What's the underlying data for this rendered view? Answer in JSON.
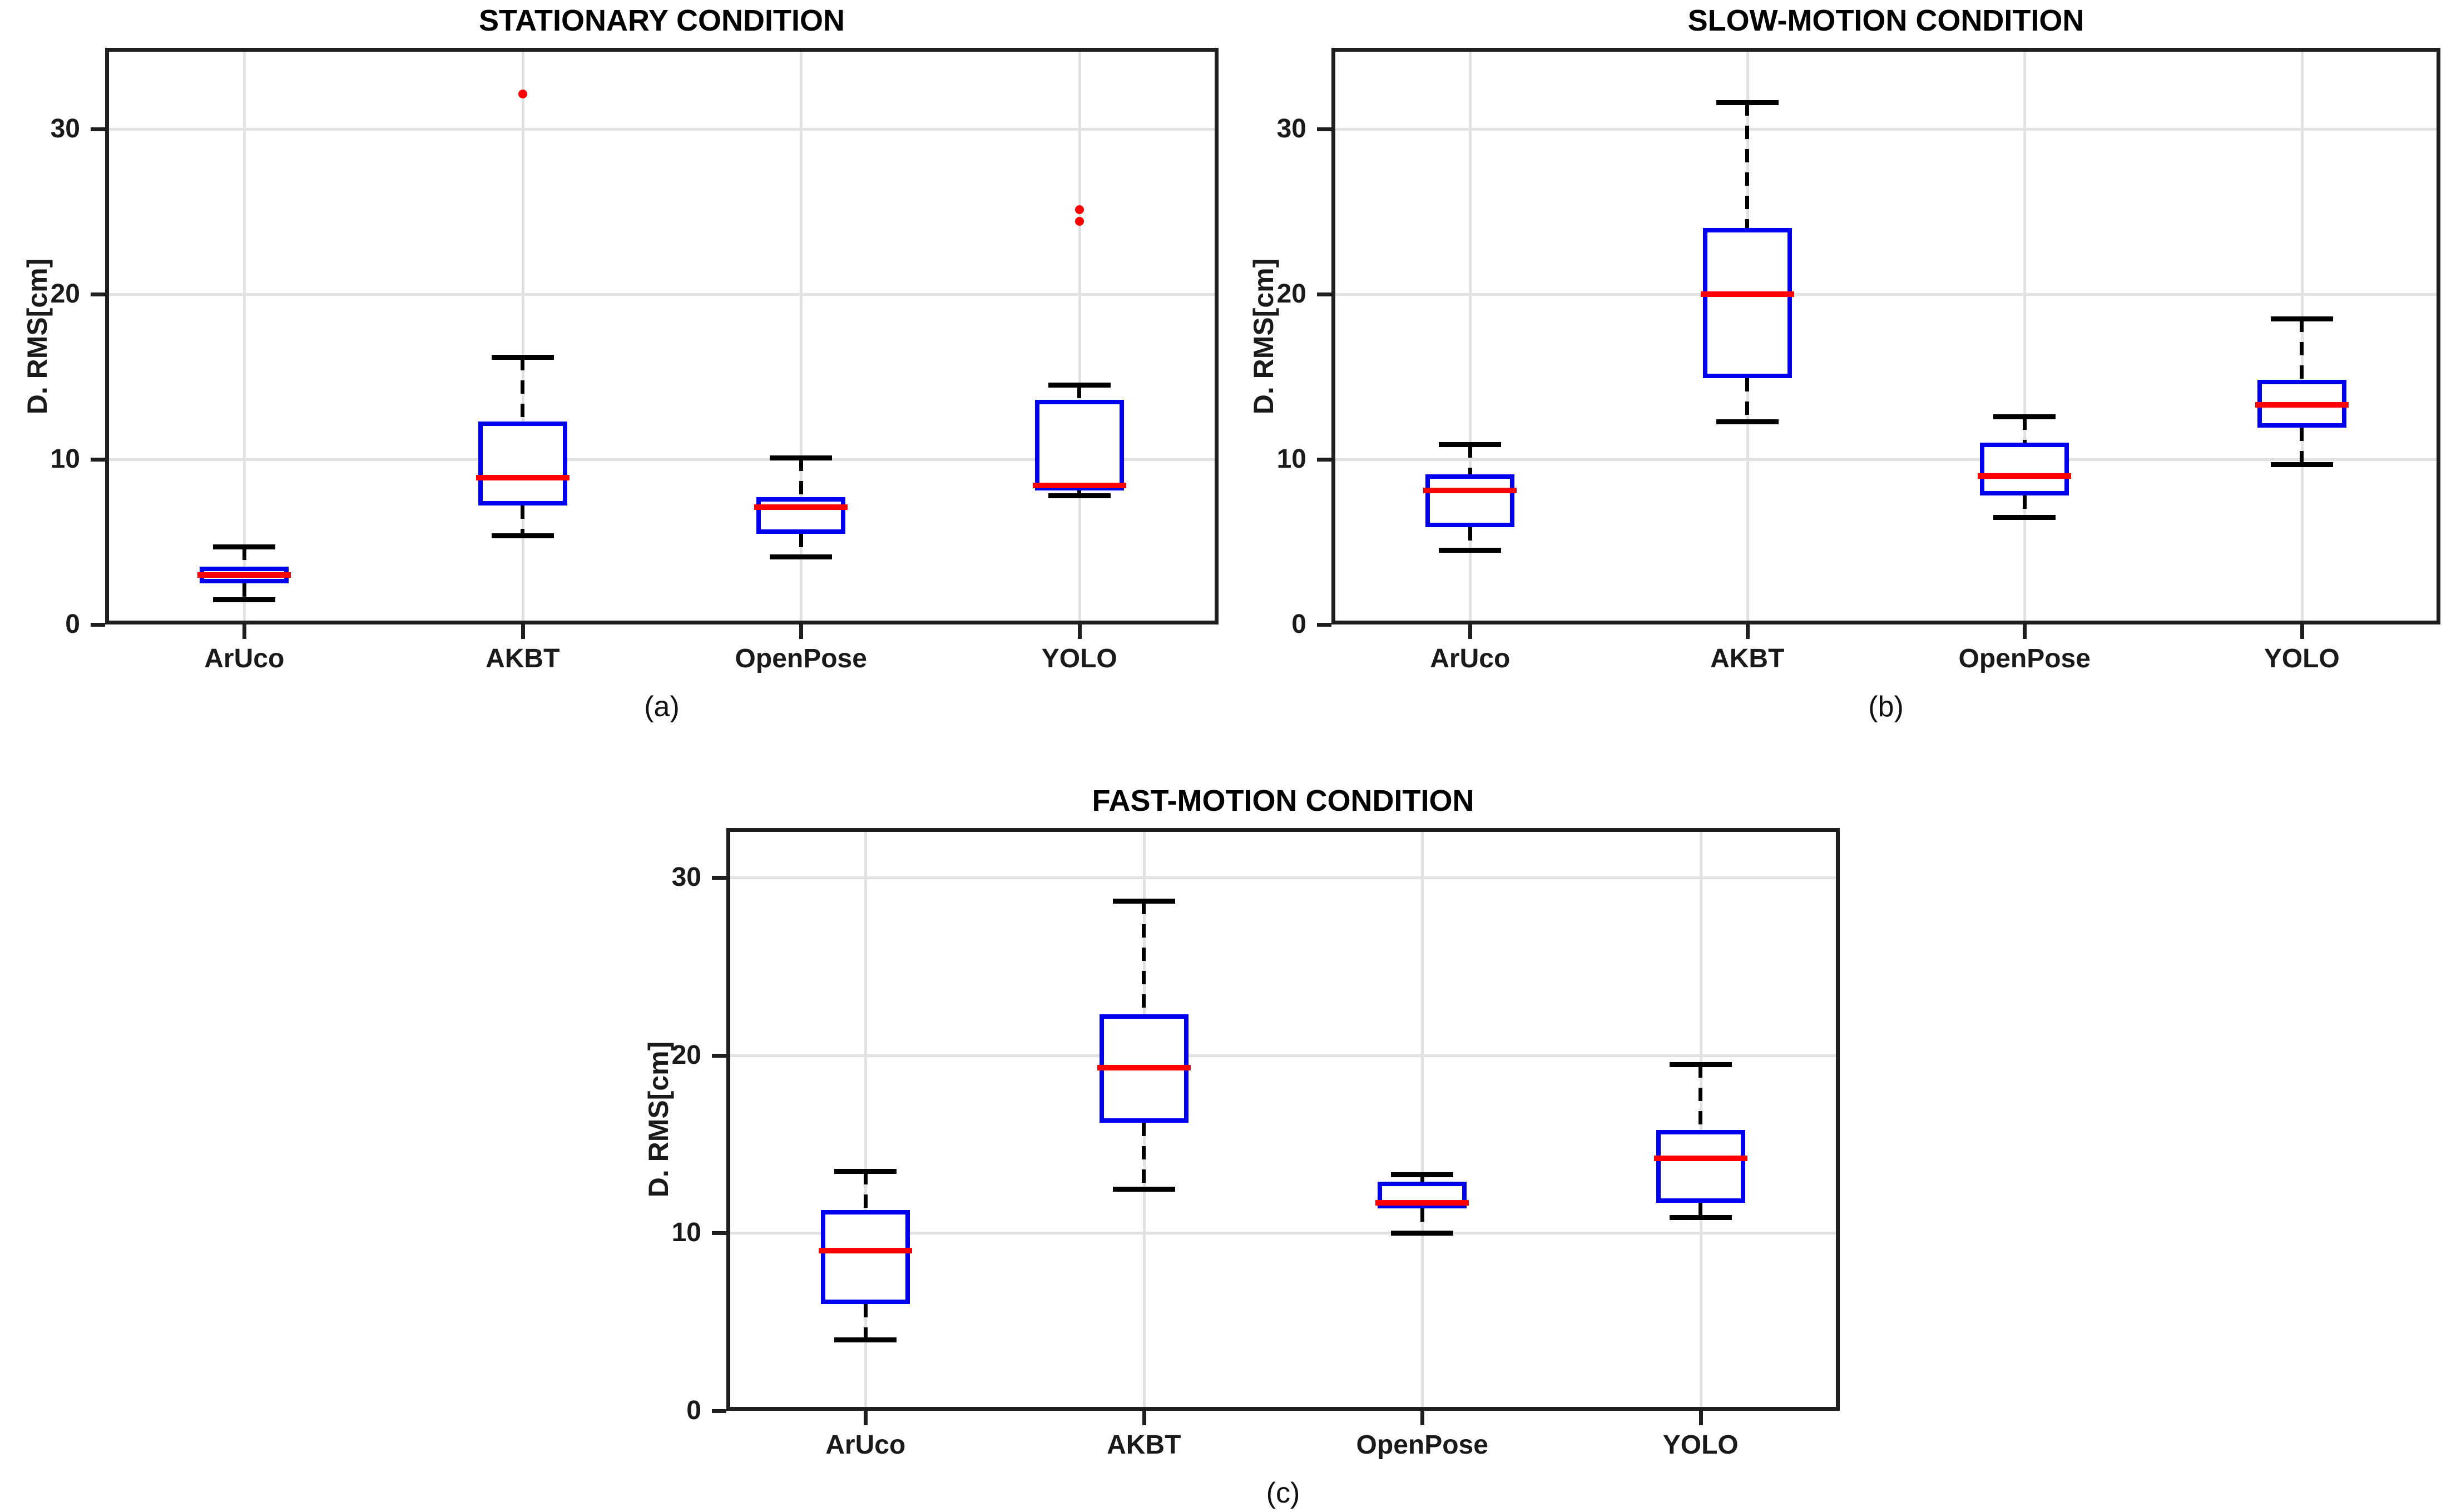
{
  "figure": {
    "background": "#ffffff",
    "box_color": "#0000ee",
    "median_color": "#ff0000",
    "whisker_color": "#000000",
    "outlier_color": "#ff0000",
    "grid_color": "#e2e2e2",
    "axis_color": "#1f1f1f"
  },
  "chart_data": [
    {
      "id": "a",
      "type": "box",
      "title": "STATIONARY CONDITION",
      "sublabel": "(a)",
      "ylabel": "D. RMS[cm]",
      "xlabel": "",
      "categories": [
        "ArUco",
        "AKBT",
        "OpenPose",
        "YOLO"
      ],
      "yticks": [
        0,
        10,
        20,
        30
      ],
      "ylim": [
        0,
        34.9
      ],
      "grid": true,
      "series": [
        {
          "category": "ArUco",
          "whisker_low": 1.5,
          "q1": 2.5,
          "median": 3.0,
          "q3": 3.5,
          "whisker_high": 4.7,
          "outliers": []
        },
        {
          "category": "AKBT",
          "whisker_low": 5.4,
          "q1": 7.2,
          "median": 8.9,
          "q3": 12.3,
          "whisker_high": 16.2,
          "outliers": [
            32.1
          ]
        },
        {
          "category": "OpenPose",
          "whisker_low": 4.1,
          "q1": 5.5,
          "median": 7.1,
          "q3": 7.7,
          "whisker_high": 10.1,
          "outliers": []
        },
        {
          "category": "YOLO",
          "whisker_low": 7.8,
          "q1": 8.1,
          "median": 8.4,
          "q3": 13.6,
          "whisker_high": 14.5,
          "outliers": [
            24.4,
            25.1
          ]
        }
      ]
    },
    {
      "id": "b",
      "type": "box",
      "title": "SLOW-MOTION CONDITION",
      "sublabel": "(b)",
      "ylabel": "D. RMS[cm]",
      "xlabel": "",
      "categories": [
        "ArUco",
        "AKBT",
        "OpenPose",
        "YOLO"
      ],
      "yticks": [
        0,
        10,
        20,
        30
      ],
      "ylim": [
        0,
        34.9
      ],
      "grid": true,
      "series": [
        {
          "category": "ArUco",
          "whisker_low": 4.5,
          "q1": 5.9,
          "median": 8.1,
          "q3": 9.1,
          "whisker_high": 10.9,
          "outliers": []
        },
        {
          "category": "AKBT",
          "whisker_low": 12.3,
          "q1": 14.9,
          "median": 20.0,
          "q3": 24.0,
          "whisker_high": 31.6,
          "outliers": []
        },
        {
          "category": "OpenPose",
          "whisker_low": 6.5,
          "q1": 7.8,
          "median": 9.0,
          "q3": 11.0,
          "whisker_high": 12.6,
          "outliers": []
        },
        {
          "category": "YOLO",
          "whisker_low": 9.7,
          "q1": 11.9,
          "median": 13.3,
          "q3": 14.8,
          "whisker_high": 18.5,
          "outliers": []
        }
      ]
    },
    {
      "id": "c",
      "type": "box",
      "title": "FAST-MOTION CONDITION",
      "sublabel": "(c)",
      "ylabel": "D. RMS[cm]",
      "xlabel": "",
      "categories": [
        "ArUco",
        "AKBT",
        "OpenPose",
        "YOLO"
      ],
      "yticks": [
        0,
        10,
        20,
        30
      ],
      "ylim": [
        0,
        32.8
      ],
      "grid": true,
      "series": [
        {
          "category": "ArUco",
          "whisker_low": 4.0,
          "q1": 6.0,
          "median": 9.0,
          "q3": 11.3,
          "whisker_high": 13.5,
          "outliers": []
        },
        {
          "category": "AKBT",
          "whisker_low": 12.5,
          "q1": 16.2,
          "median": 19.3,
          "q3": 22.3,
          "whisker_high": 28.7,
          "outliers": []
        },
        {
          "category": "OpenPose",
          "whisker_low": 10.0,
          "q1": 11.4,
          "median": 11.7,
          "q3": 12.9,
          "whisker_high": 13.3,
          "outliers": []
        },
        {
          "category": "YOLO",
          "whisker_low": 10.9,
          "q1": 11.7,
          "median": 14.2,
          "q3": 15.8,
          "whisker_high": 19.5,
          "outliers": []
        }
      ]
    }
  ]
}
